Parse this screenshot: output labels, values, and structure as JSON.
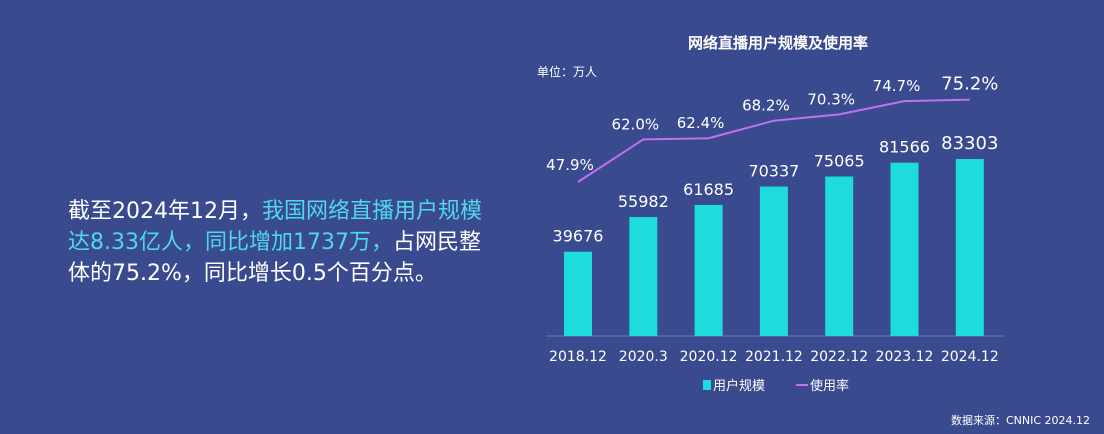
{
  "summary": {
    "part1": "截至2024年12月，",
    "part2": "我国网络直播用户规模达8.33亿人，同比增加1737万，",
    "part3": "占网民整体的75.2%，同比增长0.5个百分点。"
  },
  "source_text": "数据来源：CNNIC 2024.12",
  "chart_data": {
    "type": "bar",
    "title": "网络直播用户规模及使用率",
    "unit_label": "单位：万人",
    "categories": [
      "2018.12",
      "2020.3",
      "2020.12",
      "2021.12",
      "2022.12",
      "2023.12",
      "2024.12"
    ],
    "series": [
      {
        "name": "用户规模",
        "type": "bar",
        "values": [
          39676,
          55982,
          61685,
          70337,
          75065,
          81566,
          83303
        ],
        "labels": [
          "39676",
          "55982",
          "61685",
          "70337",
          "75065",
          "81566",
          "83303"
        ],
        "color": "#1fdcdc"
      },
      {
        "name": "使用率",
        "type": "line",
        "values": [
          47.9,
          62.0,
          62.4,
          68.2,
          70.3,
          74.7,
          75.2
        ],
        "labels": [
          "47.9%",
          "62.0%",
          "62.4%",
          "68.2%",
          "70.3%",
          "74.7%",
          "75.2%"
        ],
        "color": "#c070f0"
      }
    ],
    "legend_position": "bottom",
    "grid": false
  }
}
